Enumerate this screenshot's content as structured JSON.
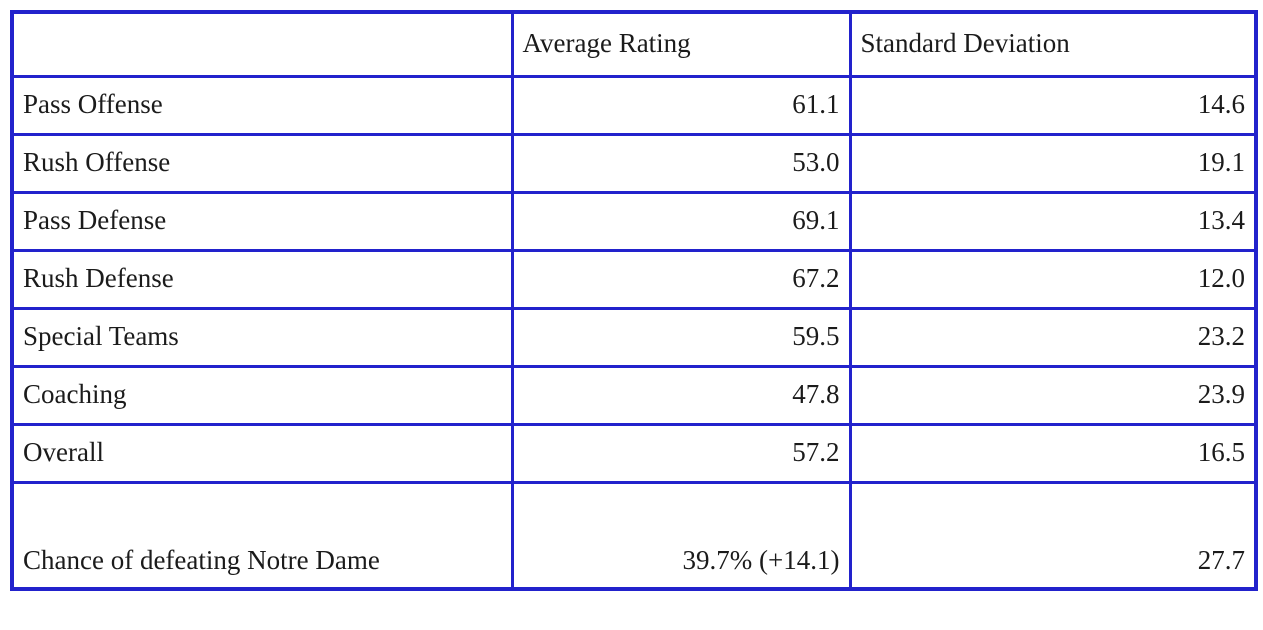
{
  "page": {
    "background_color": "#ffffff",
    "border_color": "#2222cc",
    "text_color": "#1b1b1b"
  },
  "table": {
    "columns": [
      "",
      "Average Rating",
      "Standard Deviation"
    ],
    "rows": [
      {
        "label": "Pass Offense",
        "average_rating": "61.1",
        "standard_deviation": "14.6"
      },
      {
        "label": "Rush Offense",
        "average_rating": "53.0",
        "standard_deviation": "19.1"
      },
      {
        "label": "Pass Defense",
        "average_rating": "69.1",
        "standard_deviation": "13.4"
      },
      {
        "label": "Rush Defense",
        "average_rating": "67.2",
        "standard_deviation": "12.0"
      },
      {
        "label": "Special Teams",
        "average_rating": "59.5",
        "standard_deviation": "23.2"
      },
      {
        "label": "Coaching",
        "average_rating": "47.8",
        "standard_deviation": "23.9"
      },
      {
        "label": "Overall",
        "average_rating": "57.2",
        "standard_deviation": "16.5"
      },
      {
        "label": "Chance of defeating Notre Dame",
        "average_rating": "39.7% (+14.1)",
        "standard_deviation": "27.7"
      }
    ]
  }
}
